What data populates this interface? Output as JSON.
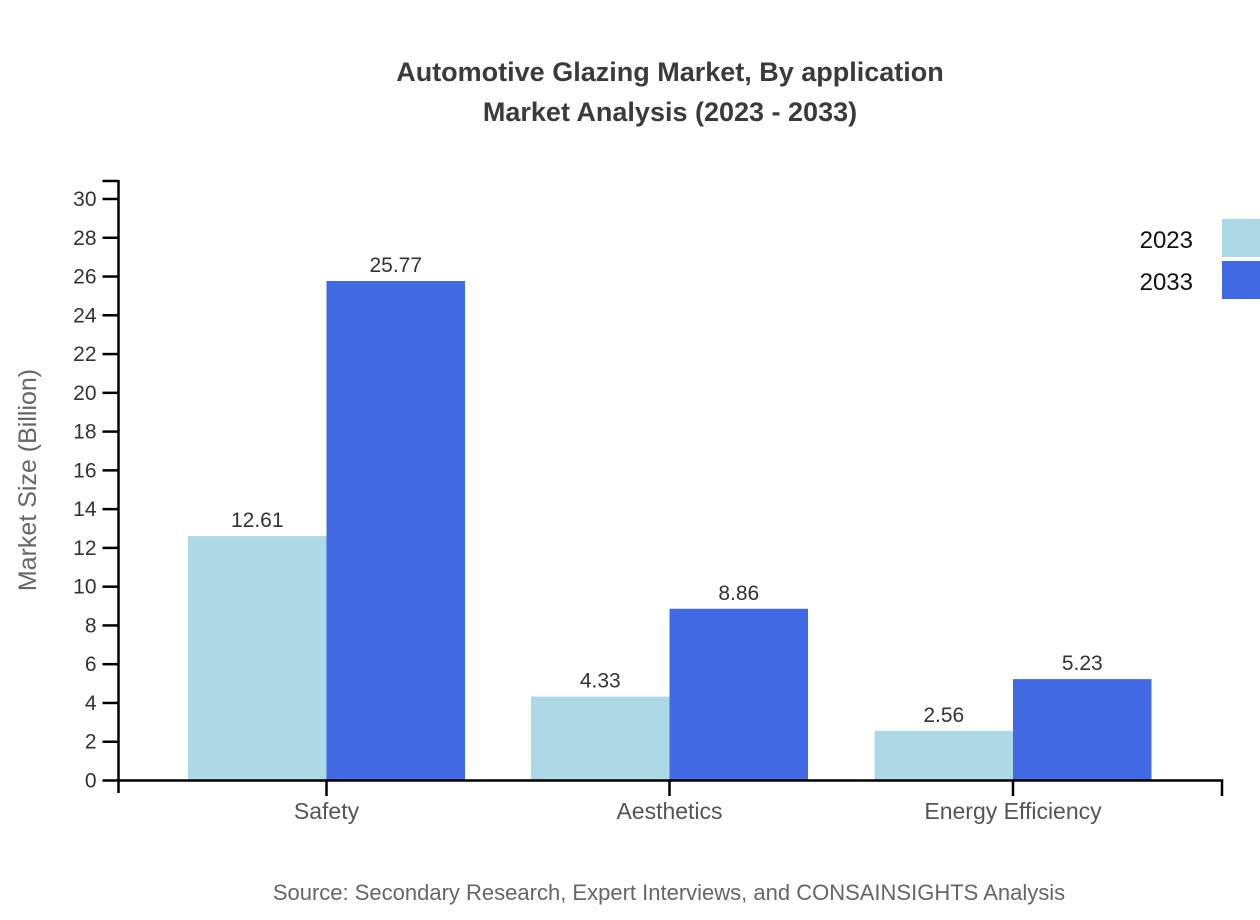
{
  "title": {
    "line1": "Automotive Glazing Market, By application",
    "line2": "Market Analysis (2023 - 2033)"
  },
  "y_axis": {
    "label": "Market Size (Billion)",
    "min": 0,
    "max": 30,
    "tick_step": 2
  },
  "legend": {
    "items": [
      {
        "label": "2023",
        "color": "#ADD8E6"
      },
      {
        "label": "2033",
        "color": "#4169E1"
      }
    ]
  },
  "source": "Source: Secondary Research, Expert Interviews, and CONSAINSIGHTS Analysis",
  "colors": {
    "series_2023": "#ADD8E6",
    "series_2033": "#4169E1",
    "axis": "#000000",
    "title_text": "#3b3b3b",
    "tick_label": "#333333",
    "category_label": "#555555",
    "value_label": "#333333",
    "axis_label": "#666666",
    "legend_text": "#111111",
    "source_text": "#666666",
    "background": "#ffffff"
  },
  "chart_data": {
    "type": "bar",
    "title": "Automotive Glazing Market, By application Market Analysis (2023 - 2033)",
    "categories": [
      "Safety",
      "Aesthetics",
      "Energy Efficiency"
    ],
    "series": [
      {
        "name": "2023",
        "color": "#ADD8E6",
        "values": [
          12.61,
          4.33,
          2.56
        ]
      },
      {
        "name": "2033",
        "color": "#4169E1",
        "values": [
          25.77,
          8.86,
          5.23
        ]
      }
    ],
    "value_labels": [
      [
        "12.61",
        "4.33",
        "2.56"
      ],
      [
        "25.77",
        "8.86",
        "5.23"
      ]
    ],
    "xlabel": "",
    "ylabel": "Market Size (Billion)",
    "ylim": [
      0,
      30
    ],
    "yticks": [
      0,
      2,
      4,
      6,
      8,
      10,
      12,
      14,
      16,
      18,
      20,
      22,
      24,
      26,
      28,
      30
    ],
    "grid": false,
    "legend_position": "top-right",
    "bar_value_labels_shown": true
  }
}
